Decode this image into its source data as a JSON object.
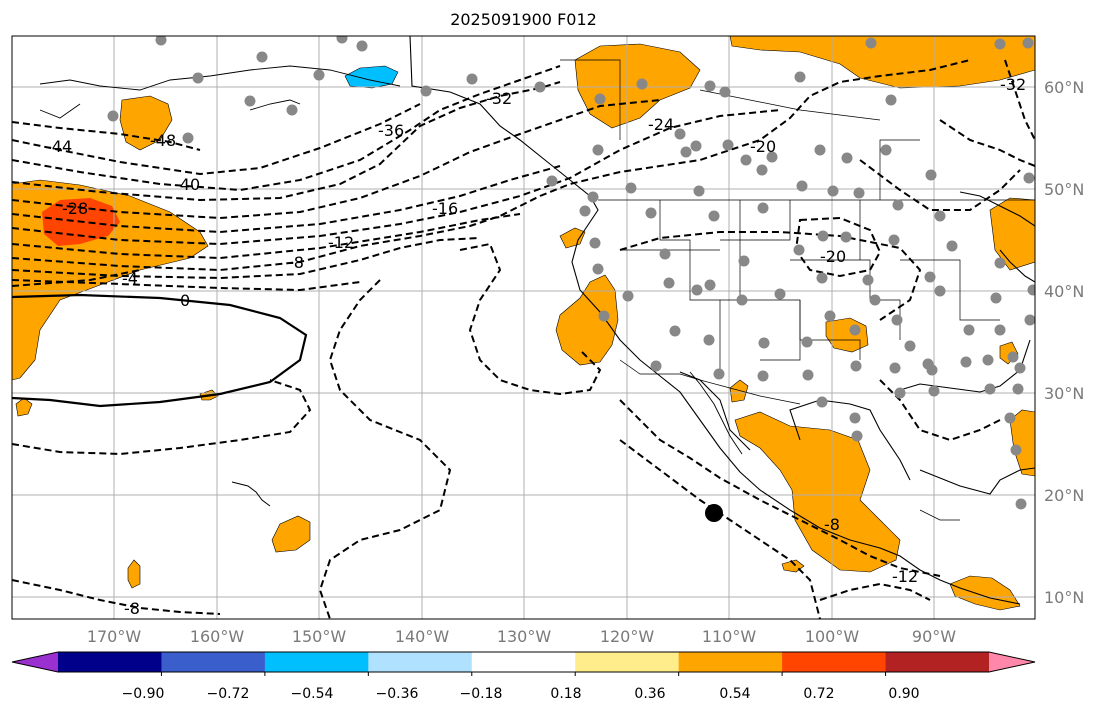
{
  "title": "2025091900 F012",
  "lon_ticks": [
    "170°W",
    "160°W",
    "150°W",
    "140°W",
    "130°W",
    "120°W",
    "110°W",
    "100°W",
    "90°W"
  ],
  "lat_ticks": [
    "60°N",
    "50°N",
    "40°N",
    "30°N",
    "20°N",
    "10°N"
  ],
  "contour_labels": [
    "-48",
    "-44",
    "-40",
    "-36",
    "-32",
    "-28",
    "-24",
    "-20",
    "-16",
    "-12",
    "-8",
    "-4",
    "0",
    "-20",
    "-32",
    "-8",
    "-12",
    "-8"
  ],
  "colorbar": {
    "colors": [
      "#9b30d0",
      "#00008b",
      "#3a5fcd",
      "#00bfff",
      "#b0e2ff",
      "#ffffff",
      "#ffec8b",
      "#ffa500",
      "#ff4500",
      "#b22222",
      "#ff88aa"
    ],
    "tick_labels": [
      "−0.90",
      "−0.72",
      "−0.54",
      "−0.36",
      "−0.18",
      "0.18",
      "0.36",
      "0.54",
      "0.72",
      "0.90"
    ]
  },
  "colors": {
    "positive_fill": "#ffa500",
    "strong_positive": "#ff4500",
    "negative_fill": "#00bfff",
    "station": "#888888",
    "grid": "#b0b0b0",
    "tick_text": "#7a7a7a"
  }
}
